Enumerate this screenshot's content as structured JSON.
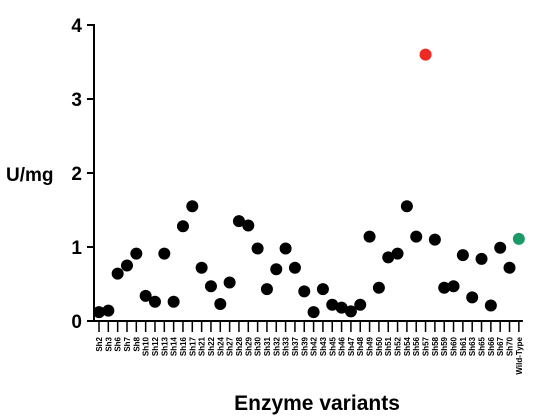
{
  "chart_data": {
    "type": "scatter",
    "title": "",
    "xlabel": "Enzyme variants",
    "ylabel": "U/mg",
    "ylim": [
      0,
      4
    ],
    "yticks": [
      0,
      1,
      2,
      3,
      4
    ],
    "grid": false,
    "legend": "none",
    "colors": {
      "default": "#000000",
      "highlight": "#ee2a24",
      "control": "#1a9a68"
    },
    "categories": [
      "Sh2",
      "Sh3",
      "Sh6",
      "Sh7",
      "Sh8",
      "Sh10",
      "Sh12",
      "Sh13",
      "Sh14",
      "Sh16",
      "Sh17",
      "Sh21",
      "Sh22",
      "Sh24",
      "Sh27",
      "Sh28",
      "Sh29",
      "Sh30",
      "Sh31",
      "Sh32",
      "Sh33",
      "Sh37",
      "Sh39",
      "Sh42",
      "Sh43",
      "Sh45",
      "Sh46",
      "Sh47",
      "Sh48",
      "Sh49",
      "Sh50",
      "Sh51",
      "Sh52",
      "Sh54",
      "Sh56",
      "Sh57",
      "Sh58",
      "Sh59",
      "Sh60",
      "Sh61",
      "Sh63",
      "Sh65",
      "Sh66",
      "Sh67",
      "Sh70",
      "Wild-Type"
    ],
    "values": [
      0.12,
      0.14,
      0.64,
      0.75,
      0.91,
      0.34,
      0.26,
      0.91,
      0.26,
      1.28,
      1.55,
      0.72,
      0.47,
      0.23,
      0.52,
      1.35,
      1.29,
      0.98,
      0.43,
      0.7,
      0.98,
      0.72,
      0.4,
      0.12,
      0.43,
      0.22,
      0.18,
      0.13,
      0.22,
      1.14,
      0.45,
      0.86,
      0.91,
      1.55,
      1.14,
      3.6,
      1.1,
      0.45,
      0.47,
      0.89,
      0.32,
      0.84,
      0.21,
      0.99,
      0.72,
      1.11
    ],
    "point_colors": [
      "default",
      "default",
      "default",
      "default",
      "default",
      "default",
      "default",
      "default",
      "default",
      "default",
      "default",
      "default",
      "default",
      "default",
      "default",
      "default",
      "default",
      "default",
      "default",
      "default",
      "default",
      "default",
      "default",
      "default",
      "default",
      "default",
      "default",
      "default",
      "default",
      "default",
      "default",
      "default",
      "default",
      "default",
      "default",
      "highlight",
      "default",
      "default",
      "default",
      "default",
      "default",
      "default",
      "default",
      "default",
      "default",
      "control"
    ]
  }
}
